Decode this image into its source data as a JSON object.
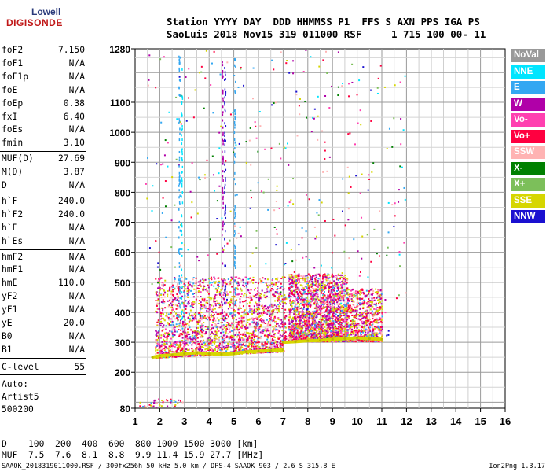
{
  "logo": {
    "line1": "Lowell",
    "line2": "DIGISONDE"
  },
  "header": {
    "labels": "Station YYYY DAY  DDD HHMMSS P1  FFS S AXN PPS IGA PS",
    "values": "SaoLuis 2018 Nov15 319 011000 RSF     1 715 100 00- 11"
  },
  "params_group1": [
    {
      "label": "foF2",
      "value": "7.150"
    },
    {
      "label": "foF1",
      "value": "N/A"
    },
    {
      "label": "foF1p",
      "value": "N/A"
    },
    {
      "label": "foE",
      "value": "N/A"
    },
    {
      "label": "foEp",
      "value": "0.38"
    },
    {
      "label": "fxI",
      "value": "6.40"
    },
    {
      "label": "foEs",
      "value": "N/A"
    },
    {
      "label": "fmin",
      "value": "3.10"
    }
  ],
  "params_group2": [
    {
      "label": "MUF(D)",
      "value": "27.69"
    },
    {
      "label": "M(D)",
      "value": "3.87"
    },
    {
      "label": "D",
      "value": "N/A"
    }
  ],
  "params_group3": [
    {
      "label": "h`F",
      "value": "240.0"
    },
    {
      "label": "h`F2",
      "value": "240.0"
    },
    {
      "label": "h`E",
      "value": "N/A"
    },
    {
      "label": "h`Es",
      "value": "N/A"
    }
  ],
  "params_group4": [
    {
      "label": "hmF2",
      "value": "N/A"
    },
    {
      "label": "hmF1",
      "value": "N/A"
    },
    {
      "label": "hmE",
      "value": "110.0"
    },
    {
      "label": "yF2",
      "value": "N/A"
    },
    {
      "label": "yF1",
      "value": "N/A"
    },
    {
      "label": "yE",
      "value": "20.0"
    },
    {
      "label": "B0",
      "value": "N/A"
    },
    {
      "label": "B1",
      "value": "N/A"
    }
  ],
  "clevel": {
    "label": "C-level",
    "value": "55"
  },
  "auto": {
    "line1": "Auto:",
    "line2": "Artist5",
    "line3": "500200"
  },
  "legend": [
    {
      "label": "NoVal",
      "color": "#999999"
    },
    {
      "label": "NNE",
      "color": "#00e5ff"
    },
    {
      "label": "E",
      "color": "#33a7f2"
    },
    {
      "label": "W",
      "color": "#b000a8"
    },
    {
      "label": "Vo-",
      "color": "#ff40b0"
    },
    {
      "label": "Vo+",
      "color": "#ff0040"
    },
    {
      "label": "SSW",
      "color": "#ffb3b3"
    },
    {
      "label": "X-",
      "color": "#008000"
    },
    {
      "label": "X+",
      "color": "#7cbf5a"
    },
    {
      "label": "SSE",
      "color": "#d6d600"
    },
    {
      "label": "NNW",
      "color": "#1a10d0"
    }
  ],
  "muf_table": {
    "d_line": "D    100  200  400  600  800 1000 1500 3000 [km]",
    "muf_line": "MUF  7.5  7.6  8.1  8.8  9.9 11.4 15.9 27.7 [MHz]"
  },
  "footer": {
    "left": "SAAOK_2018319011000.RSF / 300fx256h 50 kHz 5.0 km / DPS-4 SAAOK 903 / 2.6 S 315.8 E",
    "right": "Ion2Png 1.3.17"
  },
  "chart_data": {
    "type": "scatter",
    "title": "",
    "xlabel": "",
    "ylabel": "",
    "xlim": [
      1,
      16
    ],
    "ylim": [
      80,
      1280
    ],
    "x_ticks": [
      1,
      2,
      3,
      4,
      5,
      6,
      7,
      8,
      9,
      10,
      11,
      12,
      13,
      14,
      15,
      16
    ],
    "y_ticks": [
      80,
      200,
      300,
      400,
      500,
      600,
      700,
      800,
      900,
      1000,
      1100,
      1280
    ],
    "grid": true,
    "legend_position": "right",
    "trace_series": [
      {
        "name": "SSE",
        "x": [
          1.7,
          2.0,
          2.5,
          3.0,
          3.5,
          4.0,
          4.5,
          5.0,
          5.5,
          6.0,
          6.5,
          7.0
        ],
        "y": [
          250,
          255,
          258,
          262,
          265,
          262,
          260,
          262,
          268,
          270,
          272,
          275
        ]
      },
      {
        "name": "SSE",
        "x": [
          7.0,
          7.5,
          8.0,
          8.5,
          9.0,
          9.5,
          10.0,
          10.5,
          11.0
        ],
        "y": [
          300,
          302,
          305,
          306,
          310,
          312,
          315,
          312,
          310
        ]
      }
    ],
    "clusters": [
      {
        "x": [
          1.8,
          7.1
        ],
        "y": [
          255,
          520
        ],
        "density": "high"
      },
      {
        "x": [
          7.2,
          9.6
        ],
        "y": [
          290,
          530
        ],
        "density": "high"
      },
      {
        "x": [
          9.6,
          11.0
        ],
        "y": [
          300,
          480
        ],
        "density": "medium"
      }
    ]
  }
}
